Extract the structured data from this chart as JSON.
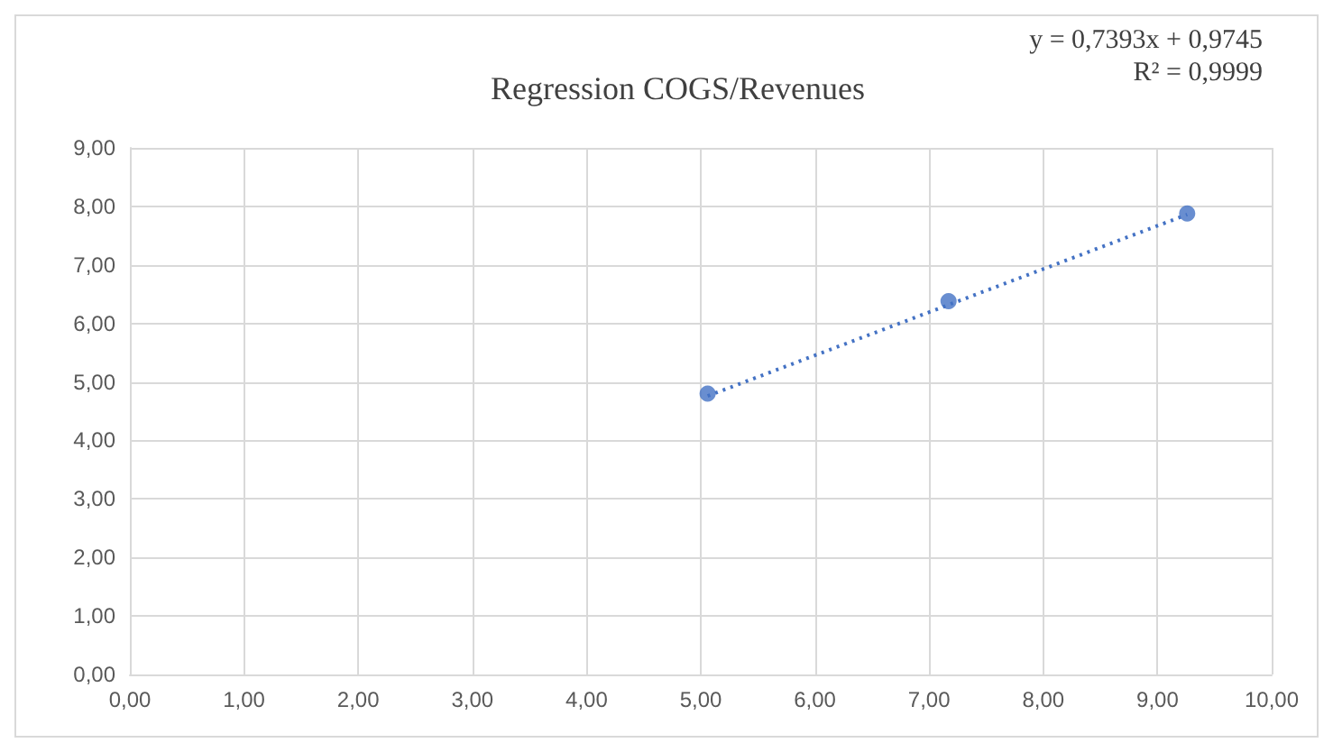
{
  "chart_data": {
    "type": "scatter",
    "title": "Regression COGS/Revenues",
    "annotations": [
      "y = 0,7393x + 0,9745",
      "R² = 0,9999"
    ],
    "grid": true,
    "series": [
      {
        "color": "#4472c4",
        "x": [
          5.06,
          7.17,
          9.26
        ],
        "values": [
          4.8,
          6.38,
          7.88
        ],
        "marker": "circle"
      },
      {
        "type": "line",
        "color": "#4472c4",
        "x": [
          5.06,
          9.26
        ],
        "values": [
          4.76,
          7.86
        ],
        "line_style": "dotted",
        "marker": "none"
      }
    ],
    "xlim": [
      0,
      10
    ],
    "xticks": [
      {
        "value": 0,
        "label": "0,00"
      },
      {
        "value": 1,
        "label": "1,00"
      },
      {
        "value": 2,
        "label": "2,00"
      },
      {
        "value": 3,
        "label": "3,00"
      },
      {
        "value": 4,
        "label": "4,00"
      },
      {
        "value": 5,
        "label": "5,00"
      },
      {
        "value": 6,
        "label": "6,00"
      },
      {
        "value": 7,
        "label": "7,00"
      },
      {
        "value": 8,
        "label": "8,00"
      },
      {
        "value": 9,
        "label": "9,00"
      },
      {
        "value": 10,
        "label": "10,00"
      }
    ],
    "ylim": [
      0,
      9
    ],
    "yticks": [
      {
        "value": 0,
        "label": "0,00"
      },
      {
        "value": 1,
        "label": "1,00"
      },
      {
        "value": 2,
        "label": "2,00"
      },
      {
        "value": 3,
        "label": "3,00"
      },
      {
        "value": 4,
        "label": "4,00"
      },
      {
        "value": 5,
        "label": "5,00"
      },
      {
        "value": 6,
        "label": "6,00"
      },
      {
        "value": 7,
        "label": "7,00"
      },
      {
        "value": 8,
        "label": "8,00"
      },
      {
        "value": 9,
        "label": "9,00"
      }
    ]
  }
}
